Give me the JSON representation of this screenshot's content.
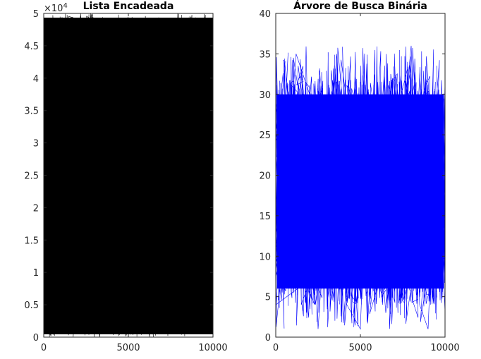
{
  "chart_data": [
    {
      "type": "line",
      "title": "Lista Encadeada",
      "xlabel": "",
      "ylabel": "",
      "xlim": [
        0,
        10000
      ],
      "ylim": [
        0,
        50000
      ],
      "xticks": [
        0,
        5000,
        10000
      ],
      "xtick_labels": [
        "0",
        "5000",
        "10000"
      ],
      "yticks": [
        0,
        5000,
        10000,
        15000,
        20000,
        25000,
        30000,
        35000,
        40000,
        45000,
        50000
      ],
      "ytick_labels": [
        "0",
        "0.5",
        "1",
        "1.5",
        "2",
        "2.5",
        "3",
        "3.5",
        "4",
        "4.5",
        "5"
      ],
      "y_exponent": "4",
      "color": "#000000",
      "grid": false,
      "description_of_data": "10000 insertion positions plotted against search cost, values span the full range 0 to 50000 densely",
      "series": [
        {
          "x": [
            0,
            600,
            1300,
            2000,
            2700,
            3400,
            4100,
            4800,
            5500,
            6200,
            6900,
            7600,
            8300,
            9000,
            9700,
            10000
          ],
          "y": [
            48000,
            1200,
            49500,
            3000,
            47000,
            800,
            49800,
            2500,
            46500,
            500,
            49000,
            1800,
            48500,
            600,
            49900,
            200
          ]
        }
      ]
    },
    {
      "type": "line",
      "title": "Árvore de Busca Binária",
      "xlabel": "",
      "ylabel": "",
      "xlim": [
        0,
        10000
      ],
      "ylim": [
        0,
        40
      ],
      "xticks": [
        0,
        5000,
        10000
      ],
      "xtick_labels": [
        "0",
        "5000",
        "10000"
      ],
      "yticks": [
        0,
        5,
        10,
        15,
        20,
        25,
        30,
        35,
        40
      ],
      "ytick_labels": [
        "0",
        "5",
        "10",
        "15",
        "20",
        "25",
        "30",
        "35",
        "40"
      ],
      "color": "#0000ff",
      "grid": false,
      "series": [
        {
          "x": [
            0,
            1200,
            2000,
            2500,
            3600,
            4200,
            5000,
            5500,
            6500,
            8000,
            8500,
            9000,
            9500,
            10000
          ],
          "y": [
            4,
            35,
            30,
            1,
            35,
            4,
            1,
            30,
            3,
            36,
            4,
            1,
            28,
            3
          ]
        }
      ]
    }
  ]
}
